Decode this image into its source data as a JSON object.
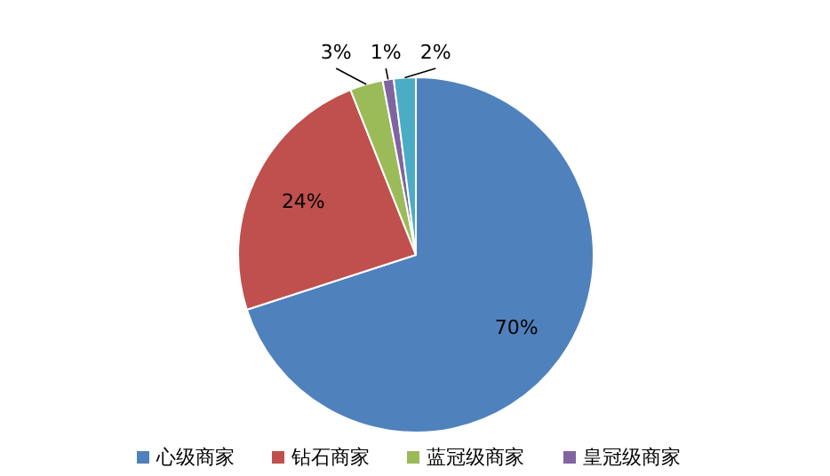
{
  "chart_data": {
    "type": "pie",
    "categories": [
      "心级商家",
      "钻石商家",
      "蓝冠级商家",
      "皇冠级商家",
      null
    ],
    "values": [
      70,
      24,
      3,
      1,
      2
    ],
    "colors": [
      "#4f81bd",
      "#c0504d",
      "#9bbb59",
      "#8064a2",
      "#4bacc6"
    ],
    "value_labels": [
      "70%",
      "24%",
      "3%",
      "1%",
      "2%"
    ],
    "legend": "bottom"
  }
}
